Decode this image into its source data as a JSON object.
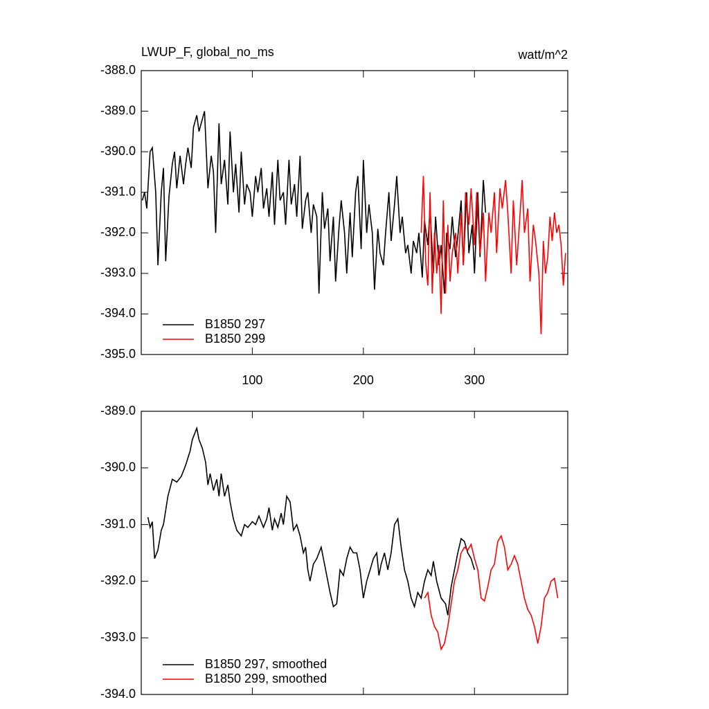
{
  "chart_data": [
    {
      "type": "line",
      "title": "LWUP_F, global_no_ms",
      "units": "watt/m^2",
      "xlim": [
        0,
        384
      ],
      "xticks": [
        100,
        200,
        300
      ],
      "ylim": [
        -395,
        -388
      ],
      "yticks": [
        {
          "value": -388,
          "label": "-388.0"
        },
        {
          "value": -389,
          "label": "-389.0"
        },
        {
          "value": -390,
          "label": "-390.0"
        },
        {
          "value": -391,
          "label": "-391.0"
        },
        {
          "value": -392,
          "label": "-392.0"
        },
        {
          "value": -393,
          "label": "-393.0"
        },
        {
          "value": -394,
          "label": "-394.0"
        },
        {
          "value": -395,
          "label": "-395.0"
        }
      ],
      "legend": "lower left",
      "xtick_labels": true,
      "series": [
        {
          "name": "B1850 297",
          "color": "#000000",
          "x": [
            1,
            3,
            5,
            8,
            10,
            13,
            15,
            18,
            20,
            22,
            25,
            28,
            30,
            32,
            35,
            38,
            40,
            42,
            45,
            47,
            50,
            52,
            55,
            57,
            60,
            63,
            65,
            67,
            70,
            72,
            75,
            78,
            80,
            83,
            85,
            88,
            90,
            93,
            95,
            98,
            100,
            103,
            105,
            108,
            110,
            113,
            115,
            118,
            120,
            123,
            125,
            128,
            130,
            133,
            135,
            138,
            140,
            143,
            145,
            148,
            150,
            153,
            155,
            158,
            160,
            163,
            165,
            168,
            170,
            173,
            175,
            178,
            180,
            183,
            185,
            188,
            190,
            193,
            195,
            198,
            200,
            203,
            205,
            208,
            210,
            213,
            215,
            218,
            220,
            223,
            225,
            228,
            230,
            233,
            235,
            238,
            240,
            243,
            245,
            248,
            250,
            253,
            255,
            258,
            260,
            263,
            265,
            268,
            270,
            273,
            275,
            278,
            280,
            283,
            285,
            288,
            290,
            293,
            295,
            298,
            300,
            303,
            305,
            308,
            310
          ],
          "values": [
            -391.2,
            -391.0,
            -391.4,
            -390.0,
            -389.9,
            -391.0,
            -392.8,
            -391.0,
            -390.4,
            -392.7,
            -391.1,
            -390.3,
            -390.0,
            -390.9,
            -390.1,
            -390.8,
            -390.3,
            -389.9,
            -390.4,
            -389.4,
            -389.1,
            -389.5,
            -389.2,
            -389.0,
            -390.9,
            -390.1,
            -390.5,
            -392.0,
            -389.3,
            -390.8,
            -390.2,
            -391.3,
            -389.5,
            -391.0,
            -390.3,
            -391.5,
            -390.0,
            -391.3,
            -390.8,
            -391.0,
            -391.6,
            -390.6,
            -391.0,
            -390.4,
            -391.4,
            -390.9,
            -391.6,
            -390.5,
            -391.8,
            -390.2,
            -391.2,
            -391.0,
            -391.8,
            -390.2,
            -391.3,
            -390.8,
            -391.6,
            -390.1,
            -391.9,
            -391.2,
            -391.0,
            -392.0,
            -391.3,
            -391.6,
            -393.5,
            -391.0,
            -391.9,
            -391.4,
            -392.7,
            -391.6,
            -393.2,
            -391.9,
            -391.2,
            -392.0,
            -393.0,
            -391.5,
            -392.6,
            -391.0,
            -390.6,
            -392.4,
            -390.2,
            -392.0,
            -391.3,
            -392.0,
            -393.4,
            -391.9,
            -392.5,
            -392.8,
            -392.0,
            -391.0,
            -392.2,
            -391.3,
            -390.6,
            -392.0,
            -391.6,
            -392.5,
            -392.3,
            -393.0,
            -392.2,
            -392.5,
            -392.0,
            -393.1,
            -391.7,
            -392.3,
            -391.4,
            -393.0,
            -391.6,
            -392.8,
            -392.3,
            -393.5,
            -392.0,
            -392.4,
            -391.6,
            -392.6,
            -392.1,
            -391.2,
            -392.8,
            -391.0,
            -392.5,
            -391.8,
            -393.0,
            -391.0,
            -392.6,
            -390.7,
            -391.5
          ]
        },
        {
          "name": "B1850 299",
          "color": "#ff0000",
          "x": [
            252,
            254,
            256,
            258,
            260,
            262,
            264,
            266,
            268,
            270,
            272,
            274,
            276,
            278,
            280,
            283,
            285,
            288,
            290,
            292,
            295,
            297,
            300,
            302,
            305,
            308,
            310,
            313,
            315,
            318,
            320,
            323,
            325,
            328,
            330,
            333,
            335,
            338,
            340,
            343,
            345,
            348,
            350,
            353,
            355,
            358,
            360,
            362,
            364,
            366,
            368,
            370,
            372,
            374,
            376,
            378,
            380,
            382
          ],
          "values": [
            -392.0,
            -390.6,
            -392.7,
            -393.3,
            -391.0,
            -393.5,
            -392.0,
            -393.0,
            -392.3,
            -394.0,
            -391.2,
            -393.5,
            -391.8,
            -393.2,
            -392.5,
            -392.0,
            -393.0,
            -391.5,
            -392.8,
            -391.0,
            -391.8,
            -390.9,
            -392.3,
            -391.0,
            -392.5,
            -391.5,
            -393.2,
            -391.5,
            -392.0,
            -391.0,
            -392.5,
            -390.9,
            -391.4,
            -390.7,
            -391.5,
            -393.0,
            -391.2,
            -392.8,
            -392.0,
            -390.7,
            -392.0,
            -391.4,
            -393.2,
            -391.8,
            -392.2,
            -393.0,
            -394.5,
            -392.2,
            -393.0,
            -392.6,
            -391.6,
            -392.2,
            -391.5,
            -392.0,
            -391.8,
            -392.3,
            -393.3,
            -392.5
          ]
        }
      ]
    },
    {
      "type": "line",
      "xlim": [
        0,
        384
      ],
      "xticks": [
        100,
        200,
        300
      ],
      "ylim": [
        -394,
        -389
      ],
      "yticks": [
        {
          "value": -389,
          "label": "-389.0"
        },
        {
          "value": -390,
          "label": "-390.0"
        },
        {
          "value": -391,
          "label": "-391.0"
        },
        {
          "value": -392,
          "label": "-392.0"
        },
        {
          "value": -393,
          "label": "-393.0"
        },
        {
          "value": -394,
          "label": "-394.0"
        }
      ],
      "legend": "lower left",
      "xtick_labels": false,
      "series": [
        {
          "name": "B1850 297, smoothed",
          "color": "#000000",
          "x": [
            6,
            8,
            10,
            12,
            15,
            18,
            20,
            24,
            28,
            32,
            36,
            40,
            44,
            46,
            48,
            50,
            52,
            55,
            58,
            60,
            62,
            65,
            68,
            70,
            72,
            75,
            78,
            80,
            83,
            86,
            90,
            93,
            96,
            100,
            103,
            106,
            110,
            113,
            115,
            118,
            120,
            123,
            126,
            128,
            131,
            134,
            137,
            140,
            143,
            146,
            148,
            150,
            152,
            155,
            158,
            162,
            166,
            170,
            173,
            176,
            179,
            182,
            185,
            188,
            191,
            194,
            197,
            200,
            203,
            206,
            209,
            212,
            214,
            216,
            219,
            222,
            225,
            228,
            231,
            234,
            237,
            240,
            243,
            246,
            249,
            252,
            255,
            258,
            261,
            263,
            266,
            270,
            274,
            276,
            279,
            282,
            285,
            288,
            291,
            294,
            297,
            300
          ],
          "values": [
            -390.87,
            -391.05,
            -390.95,
            -391.6,
            -391.45,
            -391.1,
            -391.0,
            -390.5,
            -390.2,
            -390.25,
            -390.15,
            -389.95,
            -389.7,
            -389.5,
            -389.4,
            -389.3,
            -389.5,
            -389.65,
            -389.9,
            -390.3,
            -390.1,
            -390.4,
            -390.2,
            -390.5,
            -390.1,
            -390.5,
            -390.3,
            -390.6,
            -390.9,
            -391.1,
            -391.2,
            -391.0,
            -391.05,
            -390.95,
            -391.0,
            -390.85,
            -391.05,
            -390.9,
            -390.7,
            -391.1,
            -390.9,
            -391.05,
            -390.8,
            -391.0,
            -390.5,
            -390.6,
            -391.1,
            -391.0,
            -391.2,
            -391.5,
            -391.4,
            -391.8,
            -392.0,
            -391.7,
            -391.6,
            -391.4,
            -391.8,
            -392.2,
            -392.45,
            -392.4,
            -391.8,
            -391.9,
            -391.6,
            -391.4,
            -391.5,
            -391.5,
            -391.8,
            -392.3,
            -392.0,
            -391.8,
            -391.6,
            -391.5,
            -391.9,
            -391.7,
            -391.5,
            -391.8,
            -391.5,
            -391.0,
            -390.9,
            -391.4,
            -391.8,
            -392.0,
            -392.3,
            -392.45,
            -392.2,
            -392.3,
            -392.0,
            -391.8,
            -391.9,
            -391.65,
            -392.0,
            -392.3,
            -392.4,
            -392.6,
            -392.1,
            -391.8,
            -391.5,
            -391.25,
            -391.3,
            -391.5,
            -391.6,
            -391.8
          ]
        },
        {
          "name": "B1850 299, smoothed",
          "color": "#ff0000",
          "x": [
            255,
            258,
            261,
            264,
            267,
            270,
            273,
            276,
            279,
            282,
            285,
            288,
            291,
            294,
            297,
            300,
            303,
            306,
            309,
            312,
            315,
            318,
            321,
            324,
            327,
            330,
            333,
            336,
            339,
            342,
            345,
            348,
            351,
            354,
            357,
            360,
            363,
            366,
            369,
            372,
            375
          ],
          "values": [
            -392.3,
            -392.2,
            -392.6,
            -392.8,
            -392.9,
            -393.2,
            -393.1,
            -392.8,
            -392.4,
            -392.0,
            -391.8,
            -391.5,
            -391.4,
            -391.45,
            -391.35,
            -391.6,
            -391.8,
            -392.3,
            -392.35,
            -392.1,
            -391.8,
            -391.7,
            -391.3,
            -391.2,
            -391.4,
            -391.8,
            -391.7,
            -391.55,
            -391.7,
            -392.0,
            -392.3,
            -392.5,
            -392.6,
            -392.8,
            -393.1,
            -392.8,
            -392.3,
            -392.2,
            -392.0,
            -391.95,
            -392.3
          ]
        }
      ]
    }
  ]
}
